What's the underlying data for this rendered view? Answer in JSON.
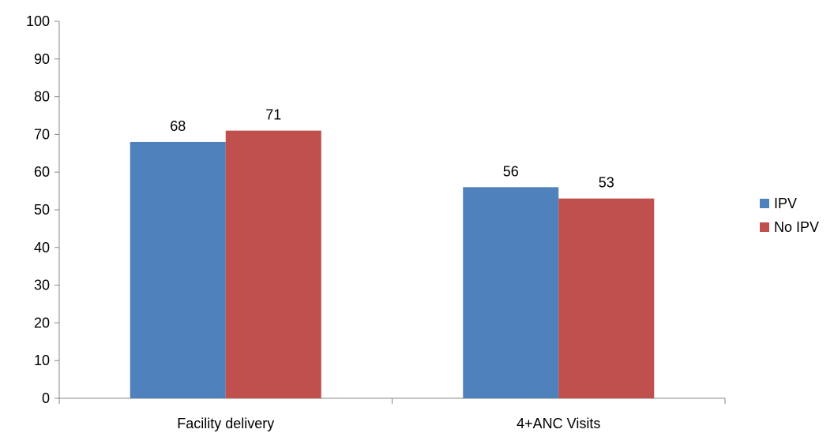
{
  "chart_data": {
    "type": "bar",
    "categories": [
      "Facility delivery",
      "4+ANC Visits"
    ],
    "series": [
      {
        "name": "IPV",
        "values": [
          68,
          56
        ],
        "color": "#4F81BD"
      },
      {
        "name": "No IPV",
        "values": [
          71,
          53
        ],
        "color": "#C0504D"
      }
    ],
    "y_ticks": [
      0,
      10,
      20,
      30,
      40,
      50,
      60,
      70,
      80,
      90,
      100
    ],
    "ylim": [
      0,
      100
    ],
    "title": "",
    "xlabel": "",
    "ylabel": "",
    "grid": false,
    "data_labels": true,
    "legend_position": "right",
    "axis_color": "#868686"
  }
}
